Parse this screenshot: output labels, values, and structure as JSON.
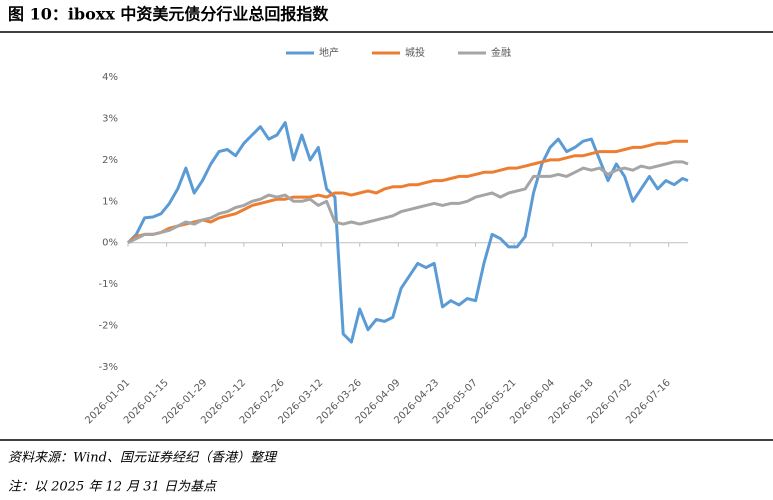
{
  "chart_data": {
    "type": "line",
    "title": "图 10：iboxx 中资美元债分行业总回报指数",
    "x": [
      "2026-01-01",
      "2026-01-04",
      "2026-01-07",
      "2026-01-10",
      "2026-01-13",
      "2026-01-16",
      "2026-01-19",
      "2026-01-22",
      "2026-01-25",
      "2026-01-28",
      "2026-01-31",
      "2026-02-03",
      "2026-02-06",
      "2026-02-09",
      "2026-02-12",
      "2026-02-15",
      "2026-02-18",
      "2026-02-21",
      "2026-02-24",
      "2026-02-27",
      "2026-03-02",
      "2026-03-05",
      "2026-03-08",
      "2026-03-11",
      "2026-03-14",
      "2026-03-17",
      "2026-03-20",
      "2026-03-23",
      "2026-03-26",
      "2026-03-29",
      "2026-04-01",
      "2026-04-04",
      "2026-04-07",
      "2026-04-10",
      "2026-04-13",
      "2026-04-16",
      "2026-04-19",
      "2026-04-22",
      "2026-04-25",
      "2026-04-28",
      "2026-05-01",
      "2026-05-04",
      "2026-05-07",
      "2026-05-10",
      "2026-05-13",
      "2026-05-16",
      "2026-05-19",
      "2026-05-22",
      "2026-05-25",
      "2026-05-28",
      "2026-05-31",
      "2026-06-03",
      "2026-06-06",
      "2026-06-09",
      "2026-06-12",
      "2026-06-15",
      "2026-06-18",
      "2026-06-21",
      "2026-06-24",
      "2026-06-27",
      "2026-06-30",
      "2026-07-03",
      "2026-07-06",
      "2026-07-09",
      "2026-07-12",
      "2026-07-15",
      "2026-07-18",
      "2026-07-21",
      "2026-07-23"
    ],
    "series": [
      {
        "name": "地产",
        "color": "#5b9bd5",
        "values": [
          0,
          0.2,
          0.6,
          0.62,
          0.7,
          0.95,
          1.3,
          1.8,
          1.2,
          1.5,
          1.9,
          2.2,
          2.25,
          2.1,
          2.4,
          2.6,
          2.8,
          2.5,
          2.6,
          2.9,
          2.0,
          2.6,
          2.0,
          2.3,
          1.3,
          1.1,
          -2.2,
          -2.4,
          -1.6,
          -2.1,
          -1.85,
          -1.9,
          -1.8,
          -1.1,
          -0.8,
          -0.5,
          -0.6,
          -0.5,
          -1.55,
          -1.4,
          -1.5,
          -1.35,
          -1.4,
          -0.5,
          0.2,
          0.1,
          -0.1,
          -0.1,
          0.15,
          1.2,
          1.9,
          2.3,
          2.5,
          2.2,
          2.3,
          2.45,
          2.5,
          2.0,
          1.5,
          1.9,
          1.6,
          1.0,
          1.3,
          1.6,
          1.3,
          1.5,
          1.4,
          1.55,
          1.5
        ]
      },
      {
        "name": "城投",
        "color": "#ed7d31",
        "values": [
          0,
          0.15,
          0.2,
          0.2,
          0.25,
          0.35,
          0.4,
          0.45,
          0.5,
          0.55,
          0.5,
          0.6,
          0.65,
          0.7,
          0.8,
          0.9,
          0.95,
          1.0,
          1.05,
          1.05,
          1.1,
          1.1,
          1.1,
          1.15,
          1.1,
          1.2,
          1.2,
          1.15,
          1.2,
          1.25,
          1.2,
          1.3,
          1.35,
          1.35,
          1.4,
          1.4,
          1.45,
          1.5,
          1.5,
          1.55,
          1.6,
          1.6,
          1.65,
          1.7,
          1.7,
          1.75,
          1.8,
          1.8,
          1.85,
          1.9,
          1.95,
          2.0,
          2.0,
          2.05,
          2.1,
          2.1,
          2.15,
          2.2,
          2.2,
          2.2,
          2.25,
          2.3,
          2.3,
          2.35,
          2.4,
          2.4,
          2.45,
          2.45,
          2.45
        ]
      },
      {
        "name": "金融",
        "color": "#a5a5a5",
        "values": [
          0,
          0.1,
          0.2,
          0.2,
          0.25,
          0.3,
          0.4,
          0.5,
          0.45,
          0.55,
          0.6,
          0.7,
          0.75,
          0.85,
          0.9,
          1.0,
          1.05,
          1.15,
          1.1,
          1.15,
          1.0,
          1.0,
          1.05,
          0.9,
          1.0,
          0.5,
          0.45,
          0.5,
          0.45,
          0.5,
          0.55,
          0.6,
          0.65,
          0.75,
          0.8,
          0.85,
          0.9,
          0.95,
          0.9,
          0.95,
          0.95,
          1.0,
          1.1,
          1.15,
          1.2,
          1.1,
          1.2,
          1.25,
          1.3,
          1.6,
          1.6,
          1.6,
          1.65,
          1.6,
          1.7,
          1.8,
          1.75,
          1.8,
          1.65,
          1.75,
          1.8,
          1.75,
          1.85,
          1.8,
          1.85,
          1.9,
          1.95,
          1.95,
          1.9
        ]
      }
    ],
    "xlim": [
      "2026-01-01",
      "2026-07-23"
    ],
    "xticks": [
      "2026-01-01",
      "2026-01-15",
      "2026-01-29",
      "2026-02-12",
      "2026-02-26",
      "2026-03-12",
      "2026-03-26",
      "2026-04-09",
      "2026-04-23",
      "2026-05-07",
      "2026-05-21",
      "2026-06-04",
      "2026-06-18",
      "2026-07-02",
      "2026-07-16"
    ],
    "ylim": [
      -3,
      4
    ],
    "yticks": [
      {
        "value": -3,
        "label": "-3%"
      },
      {
        "value": -2,
        "label": "-2%"
      },
      {
        "value": -1,
        "label": "-1%"
      },
      {
        "value": 0,
        "label": "0%"
      },
      {
        "value": 1,
        "label": "1%"
      },
      {
        "value": 2,
        "label": "2%"
      },
      {
        "value": 3,
        "label": "3%"
      },
      {
        "value": 4,
        "label": "4%"
      }
    ],
    "grid": false,
    "legend": "top"
  },
  "footer": {
    "source": "资料来源：Wind、国元证券经纪（香港）整理",
    "note": "注：以 2025 年 12 月 31 日为基点"
  }
}
